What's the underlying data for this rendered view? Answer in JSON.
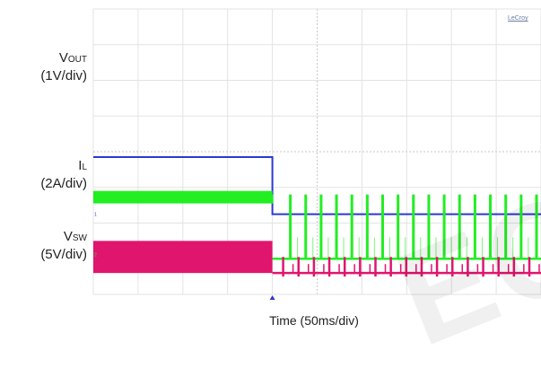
{
  "brand": "LeCroy",
  "watermark": "ECO",
  "chart_data": {
    "type": "line",
    "title": "",
    "xlabel": "Time (50ms/div)",
    "x_divisions": 10,
    "grid": true,
    "step_x_div": 4,
    "channels": [
      {
        "name_main": "V",
        "name_sub": "OUT",
        "scale": "(1V/div)",
        "color": "#2a3ad0",
        "marker": "1",
        "before_level_div": 3.85,
        "after_level_div": 2.25,
        "after_pulses": false
      },
      {
        "name_main": "I",
        "name_sub": "L",
        "scale": "(2A/div)",
        "color": "#22ee22",
        "marker": "2",
        "baseline_div": 1.0,
        "before_band_div": [
          2.55,
          2.9
        ],
        "after_low_div": 1.0,
        "after_peak_div": 2.8,
        "after_pulses": true
      },
      {
        "name_main": "V",
        "name_sub": "SW",
        "scale": "(5V/div)",
        "color": "#e0156e",
        "marker": "3",
        "baseline_div": 0.6,
        "before_band_div": [
          0.6,
          1.5
        ],
        "after_low_div": 0.6,
        "after_peak_div": 1.05,
        "after_pulses": true
      }
    ],
    "pulse_count": 17
  }
}
